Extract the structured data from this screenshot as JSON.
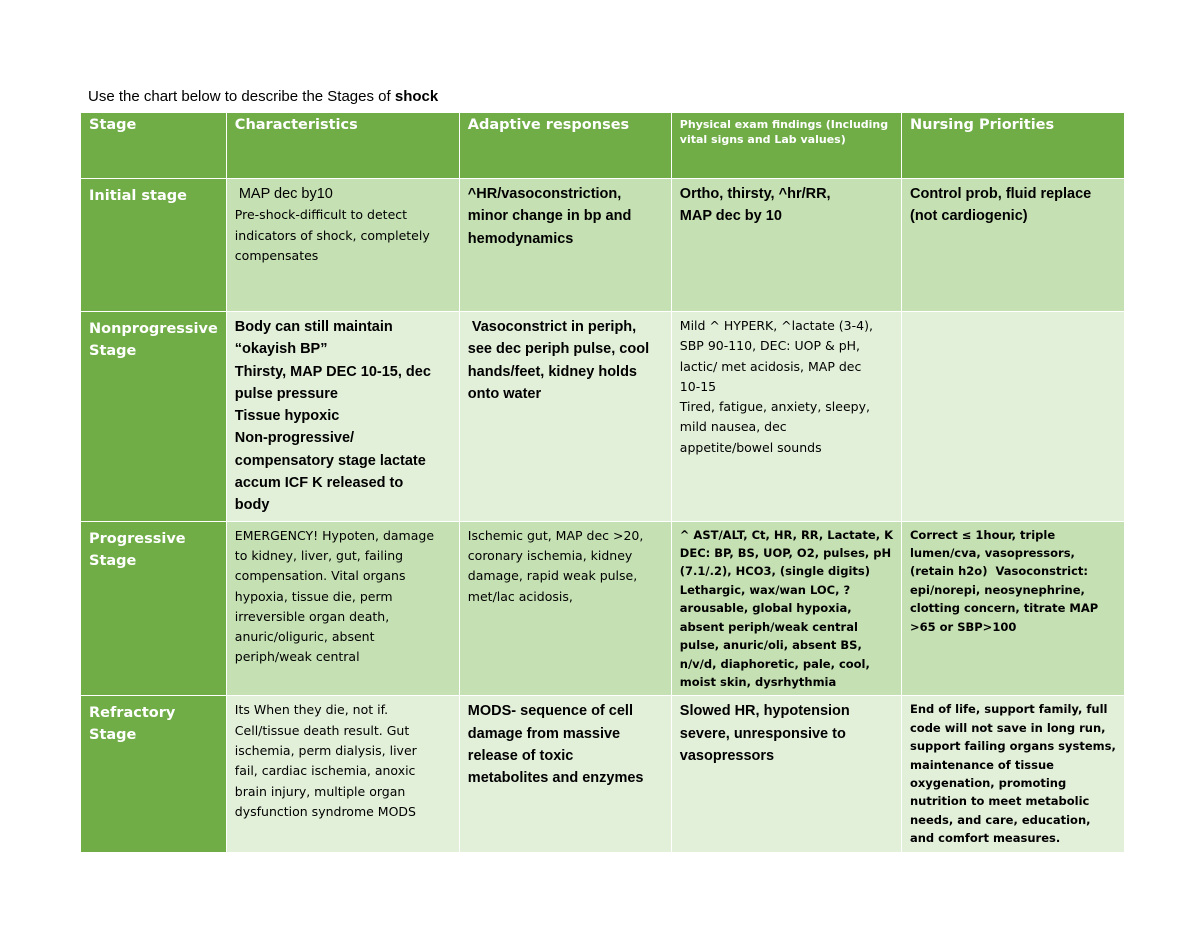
{
  "title": {
    "text": "Use the chart below to describe the Stages of",
    "emphasis": "shock"
  },
  "table": {
    "header": [
      "Stage",
      "Characteristics",
      "Adaptive responses",
      "Physical exam findings (Including vital signs and Lab values)",
      "Nursing Priorities"
    ],
    "rows": [
      [
        [
          "Initial stage"
        ],
        [
          " MAP dec by10",
          "Pre-shock-difficult to detect",
          "indicators of shock, completely",
          "compensates"
        ],
        [
          "^HR/vasoconstriction,",
          "minor change in bp and",
          "hemodynamics"
        ],
        [
          "Ortho, thirsty, ^hr/RR,",
          "MAP dec by 10"
        ],
        [
          "Control prob, fluid replace",
          "(not cardiogenic)"
        ]
      ],
      [
        [
          "Nonprogressive",
          "Stage"
        ],
        [
          "Body can still maintain",
          "“okayish BP”",
          "Thirsty, MAP DEC 10-15, dec",
          "pulse pressure",
          "Tissue hypoxic",
          "Non-progressive/",
          "compensatory stage lactate",
          "accum ICF K released to",
          "body"
        ],
        [
          " Vasoconstrict in periph,",
          "see dec periph pulse, cool",
          "hands/feet, kidney holds",
          "onto water"
        ],
        [
          "Mild ^ HYPERK, ^lactate (3-4),",
          "SBP 90-110, DEC: UOP & pH,",
          "lactic/ met acidosis, MAP dec",
          "10-15",
          "Tired, fatigue, anxiety, sleepy,",
          "mild nausea, dec",
          "appetite/bowel sounds"
        ],
        []
      ],
      [
        [
          "Progressive",
          "Stage"
        ],
        [
          "EMERGENCY! Hypoten, damage",
          "to kidney, liver, gut, failing",
          "compensation. Vital organs",
          "hypoxia, tissue die, perm",
          "irreversible organ death,",
          "anuric/oliguric, absent",
          "periph/weak central"
        ],
        [
          "Ischemic gut, MAP dec >20,",
          "coronary ischemia, kidney",
          "damage, rapid weak pulse,",
          "met/lac acidosis,"
        ],
        [
          "^ AST/ALT, Ct, HR, RR, Lactate, K",
          "DEC: BP, BS, UOP, O2, pulses, pH",
          "(7.1/.2), HCO3, (single digits)",
          "Lethargic, wax/wan LOC, ?",
          "arousable, global hypoxia,",
          "absent periph/weak central",
          "pulse, anuric/oli, absent BS,",
          "n/v/d, diaphoretic, pale, cool,",
          "moist skin, dysrhythmia"
        ],
        [
          "Correct ≤ 1hour, triple",
          "lumen/cva, vasopressors,",
          "(retain h2o)  Vasoconstrict:",
          "epi/norepi, neosynephrine,",
          "clotting concern, titrate MAP",
          ">65 or SBP>100"
        ]
      ],
      [
        [
          "Refractory",
          "Stage"
        ],
        [
          "Its When they die, not if.",
          "Cell/tissue death result. Gut",
          "ischemia, perm dialysis, liver",
          "fail, cardiac ischemia, anoxic",
          "brain injury, multiple organ",
          "dysfunction syndrome MODS"
        ],
        [
          "MODS- sequence of cell",
          "damage from massive",
          "release of toxic",
          "metabolites and enzymes"
        ],
        [
          "Slowed HR, hypotension",
          "severe, unresponsive to",
          "vasopressors"
        ],
        [
          "End of life, support family, full",
          "code will not save in long run,",
          "support failing organs systems,",
          "maintenance of tissue",
          "oxygenation, promoting",
          "nutrition to meet metabolic",
          "needs, and care, education,",
          "and comfort measures."
        ]
      ]
    ]
  }
}
